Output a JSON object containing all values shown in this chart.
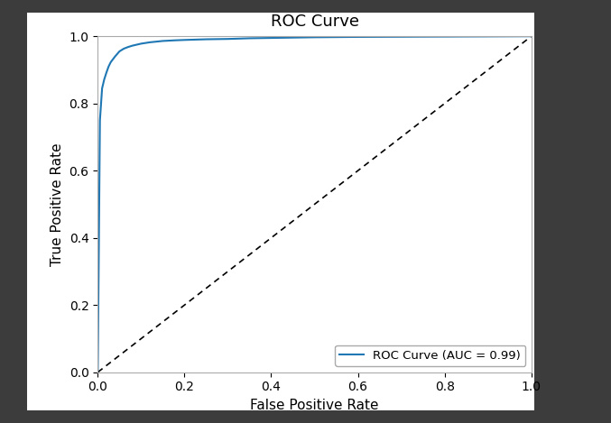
{
  "title": "ROC Curve",
  "xlabel": "False Positive Rate",
  "ylabel": "True Positive Rate",
  "auc": 0.99,
  "legend_label": "ROC Curve (AUC = 0.99)",
  "roc_color": "#1f77b4",
  "diagonal_color": "black",
  "outer_bg_color": "#3c3c3c",
  "figure_bg_color": "white",
  "plot_bg_color": "white",
  "title_fontsize": 13,
  "label_fontsize": 11,
  "tick_fontsize": 10,
  "xlim": [
    0.0,
    1.0
  ],
  "ylim": [
    0.0,
    1.0
  ],
  "xticks": [
    0.0,
    0.2,
    0.4,
    0.6,
    0.8,
    1.0
  ],
  "yticks": [
    0.0,
    0.2,
    0.4,
    0.6,
    0.8,
    1.0
  ],
  "fpr_points": [
    0.0,
    0.005,
    0.01,
    0.015,
    0.02,
    0.025,
    0.03,
    0.04,
    0.05,
    0.06,
    0.07,
    0.08,
    0.09,
    0.1,
    0.12,
    0.15,
    0.18,
    0.2,
    0.25,
    0.3,
    0.35,
    0.4,
    0.5,
    0.6,
    0.7,
    0.8,
    0.9,
    1.0
  ],
  "tpr_points": [
    0.0,
    0.75,
    0.845,
    0.872,
    0.892,
    0.91,
    0.923,
    0.94,
    0.955,
    0.963,
    0.968,
    0.972,
    0.975,
    0.978,
    0.982,
    0.986,
    0.988,
    0.989,
    0.991,
    0.992,
    0.994,
    0.995,
    0.997,
    0.998,
    0.9985,
    0.999,
    0.9995,
    1.0
  ]
}
